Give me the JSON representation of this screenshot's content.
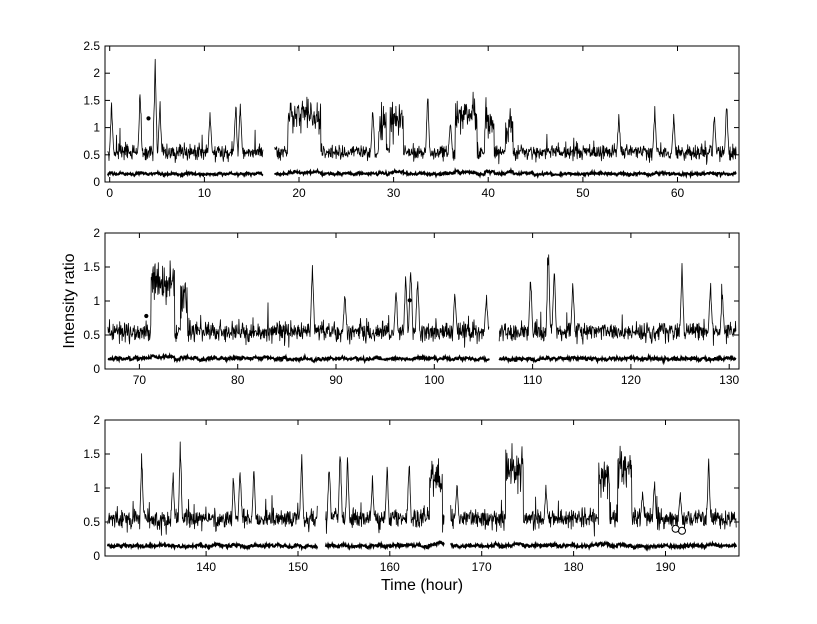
{
  "figure": {
    "ylabel": "Intensity ratio",
    "xlabel": "Time (hour)"
  },
  "chart_data": [
    {
      "type": "line",
      "xlim": [
        -0.5,
        66.5
      ],
      "ylim": [
        0,
        2.5
      ],
      "xticks": [
        0,
        10,
        20,
        30,
        40,
        50,
        60
      ],
      "yticks": [
        0,
        0.5,
        1,
        1.5,
        2,
        2.5
      ],
      "ytick_labels": [
        "0",
        "0.5",
        "1",
        "1.5",
        "2",
        "2.5"
      ],
      "baseline_level": 0.15,
      "base_level": 0.55,
      "high_level": 1.2,
      "gaps": [
        [
          16.2,
          17.4
        ]
      ],
      "plateaus": [
        [
          18.8,
          22.3,
          1.25
        ],
        [
          28.4,
          29.2,
          1.1
        ],
        [
          29.6,
          31.0,
          1.15
        ],
        [
          36.5,
          38.8,
          1.2
        ],
        [
          39.6,
          40.6,
          1.1
        ],
        [
          41.8,
          42.6,
          1.1
        ]
      ],
      "spikes": [
        [
          0.2,
          1.55
        ],
        [
          3.2,
          1.8
        ],
        [
          4.8,
          2.5
        ],
        [
          5.3,
          1.6
        ],
        [
          10.6,
          1.4
        ],
        [
          13.3,
          1.5
        ],
        [
          13.8,
          1.6
        ],
        [
          27.8,
          1.5
        ],
        [
          33.6,
          1.8
        ],
        [
          36.0,
          1.2
        ],
        [
          37.7,
          1.55
        ],
        [
          38.4,
          1.7
        ],
        [
          53.8,
          1.3
        ],
        [
          57.6,
          1.45
        ],
        [
          59.6,
          1.3
        ],
        [
          63.9,
          1.4
        ],
        [
          65.2,
          1.55
        ]
      ],
      "markers": [
        [
          4.1,
          1.17
        ]
      ]
    },
    {
      "type": "line",
      "xlim": [
        66.5,
        131
      ],
      "ylim": [
        0,
        2
      ],
      "xticks": [
        70,
        80,
        90,
        100,
        110,
        120,
        130
      ],
      "yticks": [
        0,
        0.5,
        1,
        1.5,
        2
      ],
      "ytick_labels": [
        "0",
        "0.5",
        "1",
        "1.5",
        "2"
      ],
      "baseline_level": 0.15,
      "base_level": 0.55,
      "high_level": 1.2,
      "gaps": [
        [
          105.6,
          106.6
        ]
      ],
      "plateaus": [
        [
          71.2,
          73.6,
          1.3
        ],
        [
          74.2,
          74.9,
          1.05
        ]
      ],
      "spikes": [
        [
          87.6,
          1.7
        ],
        [
          90.9,
          1.2
        ],
        [
          96.1,
          1.2
        ],
        [
          97.1,
          1.55
        ],
        [
          97.6,
          1.65
        ],
        [
          98.3,
          1.5
        ],
        [
          102.1,
          1.25
        ],
        [
          105.3,
          1.15
        ],
        [
          109.8,
          1.5
        ],
        [
          111.6,
          1.85
        ],
        [
          112.2,
          1.6
        ],
        [
          114.1,
          1.35
        ],
        [
          125.2,
          1.6
        ],
        [
          128.1,
          1.35
        ],
        [
          129.3,
          1.15
        ]
      ],
      "markers": [
        [
          70.7,
          0.78
        ],
        [
          88.1,
          0.58
        ],
        [
          97.5,
          1.01
        ]
      ]
    },
    {
      "type": "line",
      "xlim": [
        129,
        198
      ],
      "ylim": [
        0,
        2
      ],
      "xticks": [
        140,
        150,
        160,
        170,
        180,
        190
      ],
      "yticks": [
        0,
        0.5,
        1,
        1.5,
        2
      ],
      "ytick_labels": [
        "0",
        "0.5",
        "1",
        "1.5",
        "2"
      ],
      "baseline_level": 0.15,
      "base_level": 0.55,
      "high_level": 1.2,
      "gaps": [
        [
          152.1,
          153.0
        ],
        [
          165.9,
          166.6
        ]
      ],
      "plateaus": [
        [
          164.3,
          165.7,
          1.15
        ],
        [
          172.6,
          174.5,
          1.25
        ],
        [
          182.7,
          183.9,
          1.2
        ],
        [
          184.8,
          186.3,
          1.3
        ]
      ],
      "spikes": [
        [
          133.0,
          1.6
        ],
        [
          136.4,
          1.3
        ],
        [
          137.2,
          1.8
        ],
        [
          143.0,
          1.2
        ],
        [
          143.7,
          1.4
        ],
        [
          145.2,
          1.35
        ],
        [
          150.4,
          1.6
        ],
        [
          153.4,
          1.5
        ],
        [
          154.6,
          1.8
        ],
        [
          155.4,
          1.6
        ],
        [
          158.1,
          1.2
        ],
        [
          159.7,
          1.4
        ],
        [
          162.1,
          1.5
        ],
        [
          167.3,
          1.15
        ],
        [
          177.0,
          1.1
        ],
        [
          187.5,
          1.0
        ],
        [
          188.8,
          1.15
        ],
        [
          191.6,
          1.0
        ],
        [
          194.7,
          1.5
        ]
      ],
      "markers": [
        [
          191.1,
          0.4
        ],
        [
          191.8,
          0.37
        ]
      ]
    }
  ]
}
